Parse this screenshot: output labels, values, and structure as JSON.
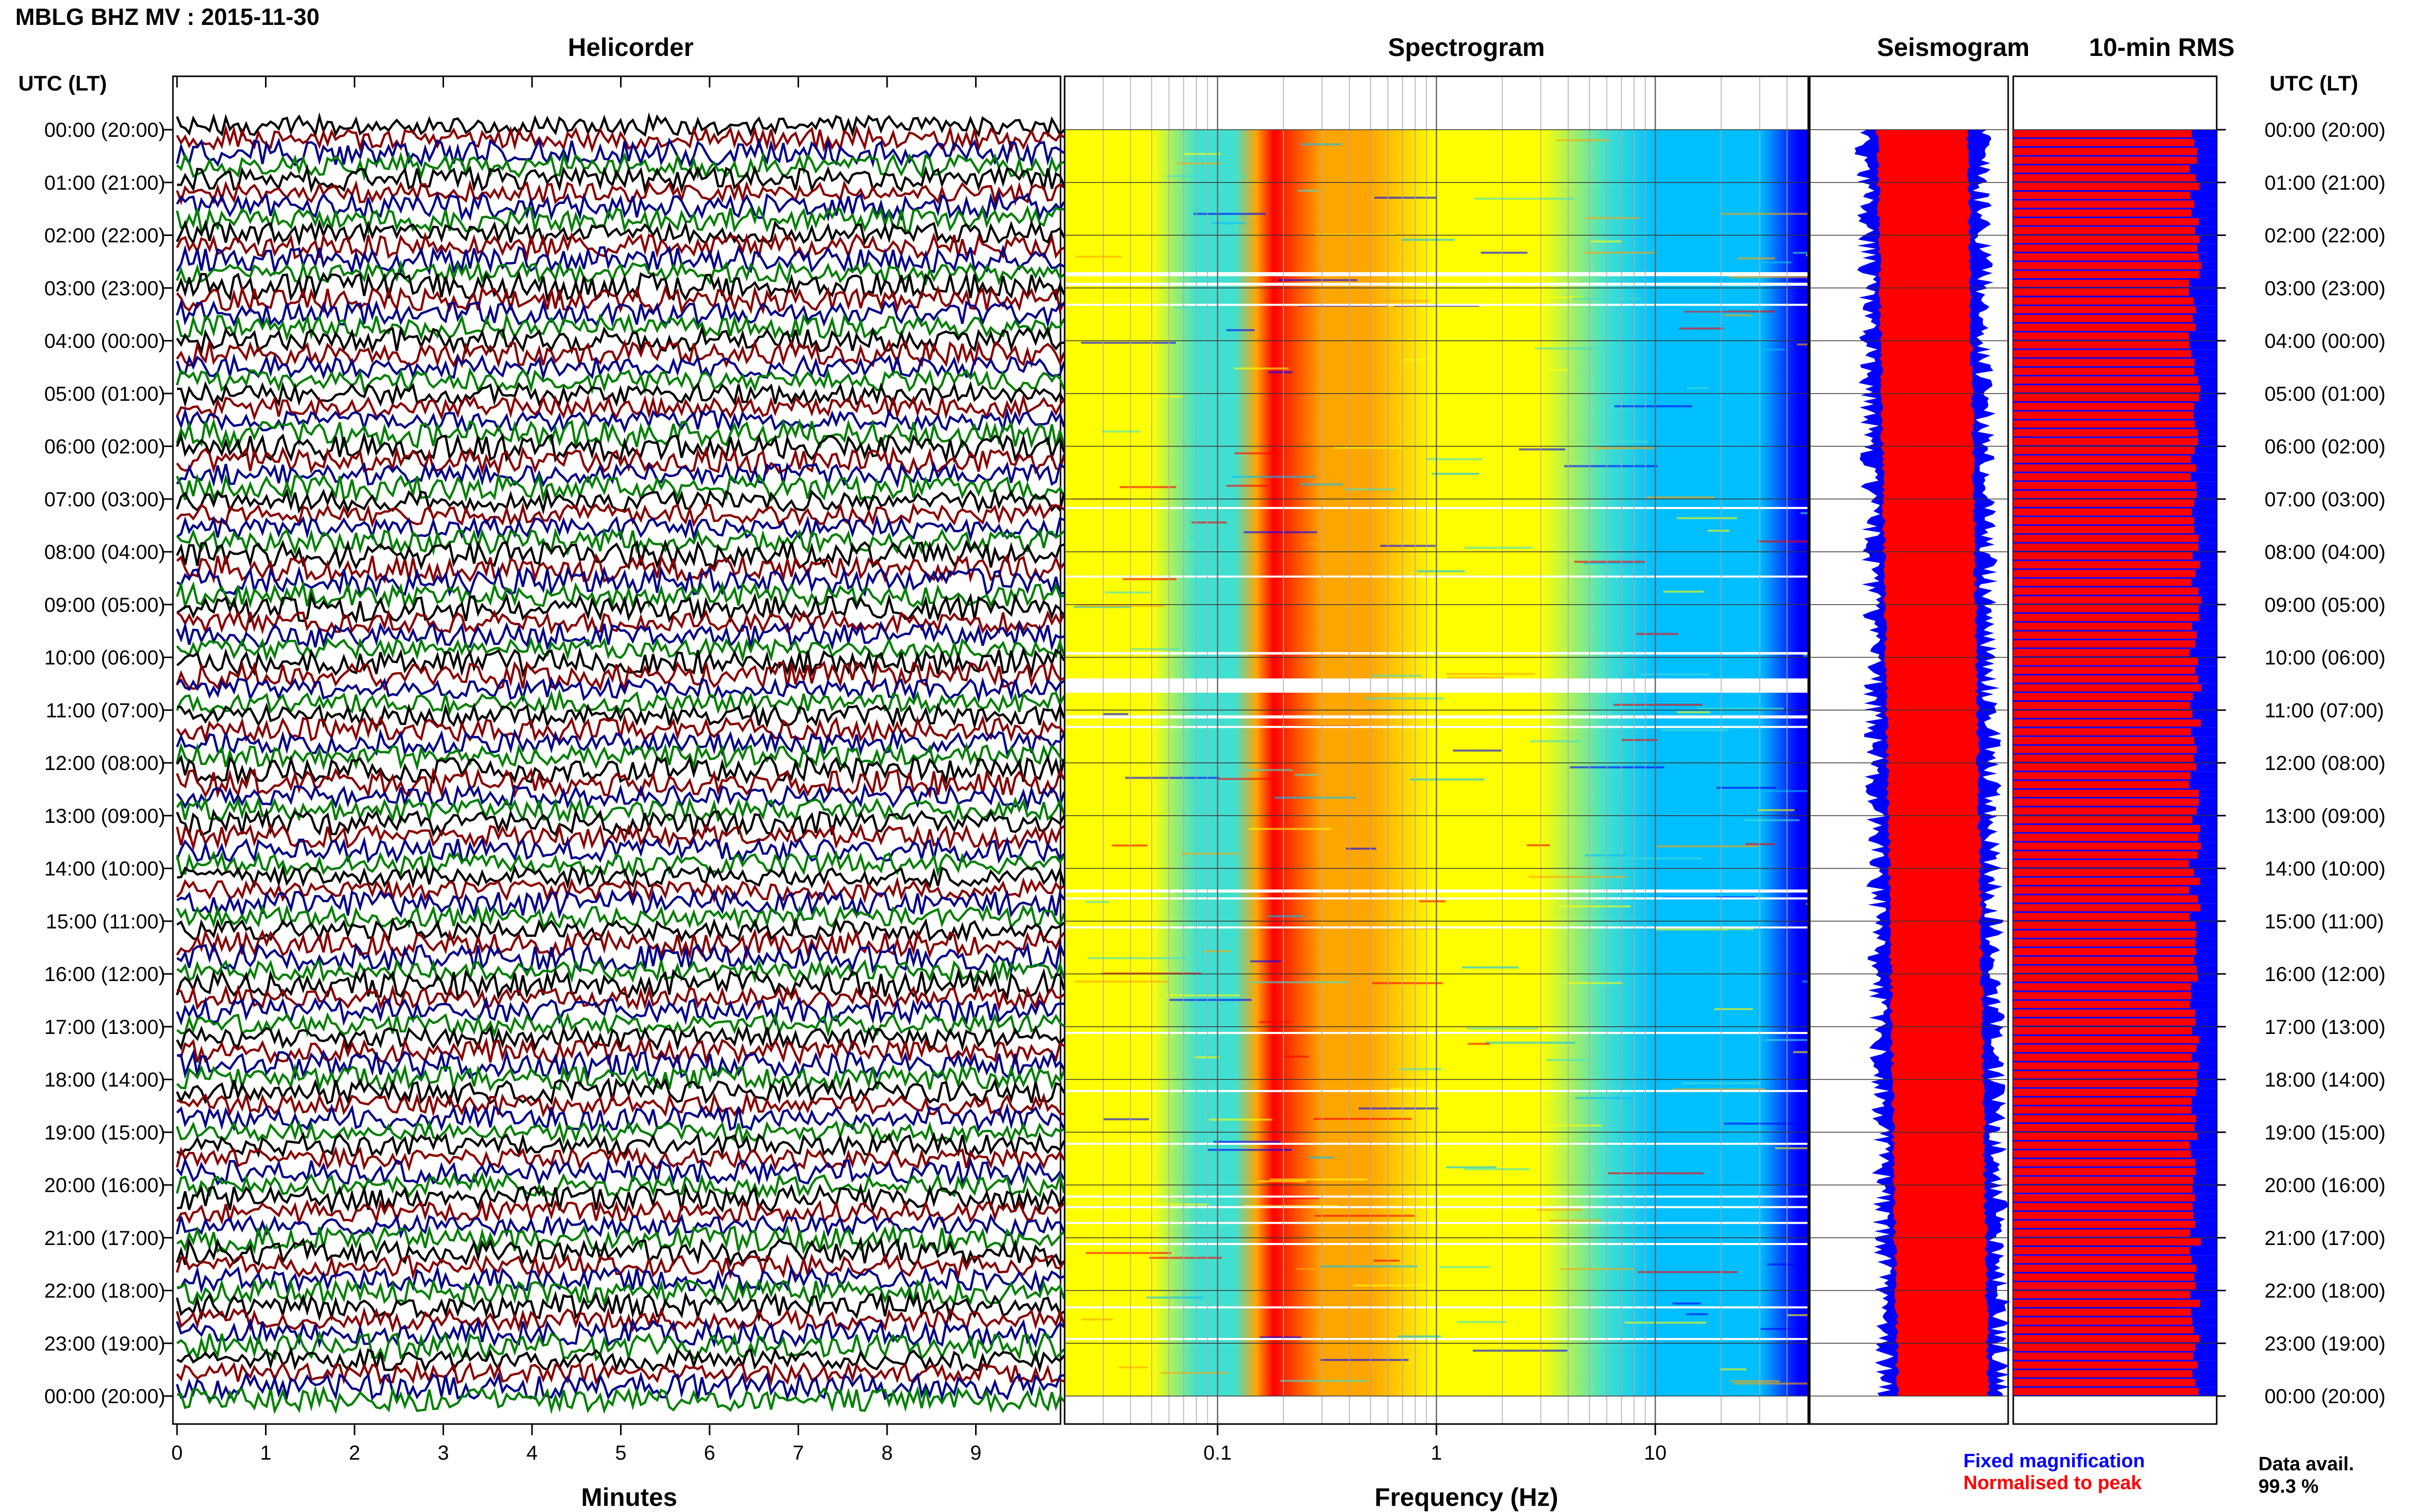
{
  "title": "MBLG BHZ MV : 2015-11-30",
  "panels": {
    "helicorder": "Helicorder",
    "spectrogram": "Spectrogram",
    "seismogram": "Seismogram",
    "rms": "10-min RMS"
  },
  "utc_label_left": "UTC (LT)",
  "utc_label_right": "UTC (LT)",
  "x_labels": {
    "minutes": "Minutes",
    "frequency": "Frequency (Hz)"
  },
  "legend": {
    "fixed": "Fixed magnification",
    "normalised": "Normalised to peak",
    "fixed_color": "#0000ff",
    "normalised_color": "#ff0000"
  },
  "data_availability": {
    "label": "Data avail.",
    "value": "99.3 %"
  },
  "chart_data": {
    "type": "heatmap",
    "time_labels": [
      "00:00 (20:00)",
      "01:00 (21:00)",
      "02:00 (22:00)",
      "03:00 (23:00)",
      "04:00 (00:00)",
      "05:00 (01:00)",
      "06:00 (02:00)",
      "07:00 (03:00)",
      "08:00 (04:00)",
      "09:00 (05:00)",
      "10:00 (06:00)",
      "11:00 (07:00)",
      "12:00 (08:00)",
      "13:00 (09:00)",
      "14:00 (10:00)",
      "15:00 (11:00)",
      "16:00 (12:00)",
      "17:00 (13:00)",
      "18:00 (14:00)",
      "19:00 (15:00)",
      "20:00 (16:00)",
      "21:00 (17:00)",
      "22:00 (18:00)",
      "23:00 (19:00)",
      "00:00 (20:00)"
    ],
    "helicorder": {
      "x_ticks": [
        "0",
        "1",
        "2",
        "3",
        "4",
        "5",
        "6",
        "7",
        "8",
        "9"
      ],
      "xlim": [
        0,
        10
      ],
      "trace_colors": [
        "#000000",
        "#8b0000",
        "#00008b",
        "#008000"
      ]
    },
    "spectrogram": {
      "x_scale": "log",
      "x_ticks": [
        "0.1",
        "1",
        "10"
      ],
      "xlim": [
        0.02,
        50
      ],
      "dominant_band_hz": [
        0.15,
        0.5
      ],
      "colormap": [
        "#0000ff",
        "#00bfff",
        "#40e0d0",
        "#ffff00",
        "#ffa500",
        "#ff0000"
      ]
    },
    "seismogram": {
      "fixed_color": "#0000ff",
      "normalised_color": "#ff0000"
    },
    "rms": {
      "fixed_color": "#0000ff",
      "normalised_color": "#ff0000"
    }
  }
}
